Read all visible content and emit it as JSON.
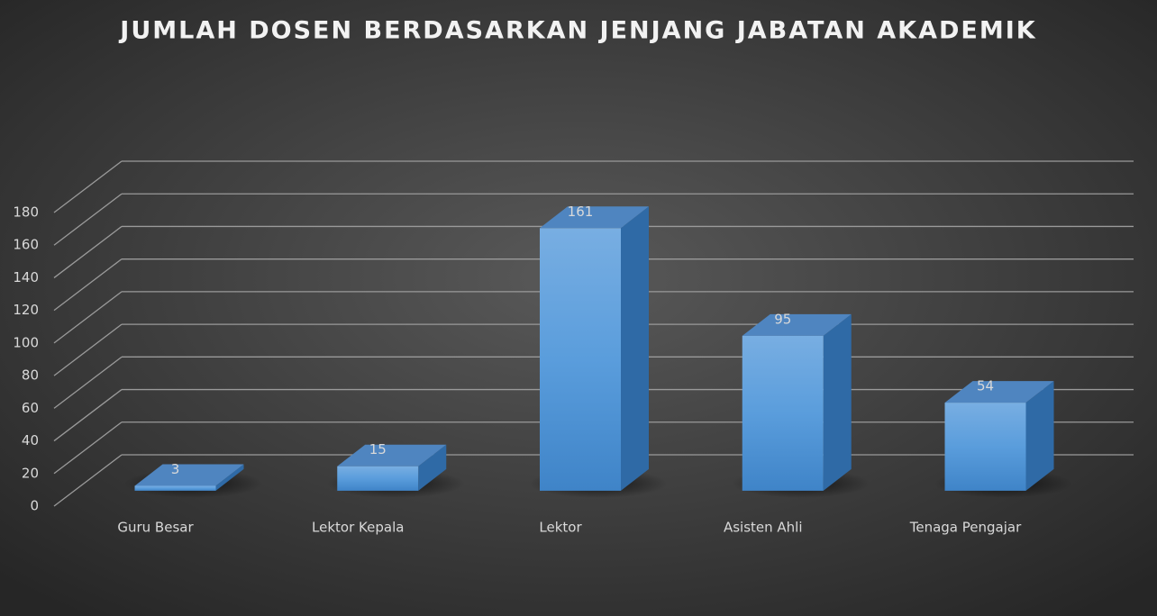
{
  "chart_data": {
    "type": "bar3d",
    "title": "JUMLAH DOSEN BERDASARKAN JENJANG JABATAN AKADEMIK",
    "categories": [
      "Guru Besar",
      "Lektor Kepala",
      "Lektor",
      "Asisten Ahli",
      "Tenaga Pengajar"
    ],
    "values": [
      3,
      15,
      161,
      95,
      54
    ],
    "color": "#5b9bd5",
    "ylim": [
      0,
      180
    ],
    "yticks": [
      0,
      20,
      40,
      60,
      80,
      100,
      120,
      140,
      160,
      180
    ],
    "grid": true
  }
}
